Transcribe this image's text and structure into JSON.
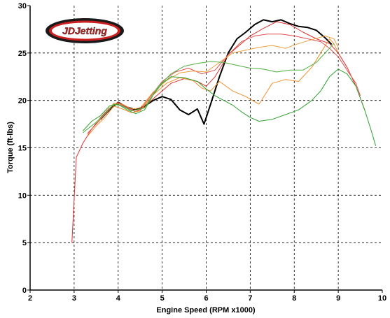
{
  "chart_data": {
    "type": "line",
    "title": "",
    "xlabel": "Engine Speed (RPM x1000)",
    "ylabel": "Torque (ft-lbs)",
    "xlim": [
      2,
      10
    ],
    "ylim": [
      0,
      30
    ],
    "x_ticks": [
      2,
      3,
      4,
      5,
      6,
      7,
      8,
      9,
      10
    ],
    "y_ticks": [
      0,
      5,
      10,
      15,
      20,
      25,
      30
    ],
    "grid": true,
    "legend": "none",
    "logo": {
      "text": "JDJetting",
      "colors": {
        "outer": "#1a1a1a",
        "ring": "#cc1f1f",
        "inner": "#ffffff",
        "text": "#cc1f1f"
      }
    },
    "series": [
      {
        "color": "#000000",
        "width": 2,
        "points": [
          [
            3.6,
            18.0
          ],
          [
            3.8,
            19.0
          ],
          [
            4.0,
            19.8
          ],
          [
            4.2,
            19.3
          ],
          [
            4.4,
            19.0
          ],
          [
            4.6,
            19.4
          ],
          [
            4.8,
            20.0
          ],
          [
            5.0,
            20.4
          ],
          [
            5.2,
            20.1
          ],
          [
            5.4,
            19.0
          ],
          [
            5.6,
            18.5
          ],
          [
            5.8,
            19.1
          ],
          [
            5.95,
            17.5
          ],
          [
            6.1,
            19.6
          ],
          [
            6.3,
            22.5
          ],
          [
            6.5,
            25.0
          ],
          [
            6.7,
            26.5
          ],
          [
            6.9,
            27.2
          ],
          [
            7.1,
            28.0
          ],
          [
            7.3,
            28.5
          ],
          [
            7.5,
            28.3
          ],
          [
            7.7,
            28.5
          ],
          [
            7.9,
            28.1
          ],
          [
            8.1,
            27.8
          ],
          [
            8.3,
            27.7
          ],
          [
            8.5,
            27.4
          ],
          [
            8.7,
            26.6
          ],
          [
            8.85,
            25.9
          ]
        ]
      },
      {
        "color": "#e03030",
        "width": 1,
        "points": [
          [
            2.95,
            5.0
          ],
          [
            3.05,
            14.0
          ],
          [
            3.2,
            15.5
          ],
          [
            3.4,
            17.0
          ],
          [
            3.6,
            18.2
          ],
          [
            3.8,
            19.2
          ],
          [
            4.0,
            19.8
          ],
          [
            4.2,
            19.2
          ],
          [
            4.4,
            18.8
          ],
          [
            4.6,
            19.3
          ],
          [
            4.8,
            20.2
          ],
          [
            5.0,
            21.0
          ],
          [
            5.2,
            21.8
          ],
          [
            5.5,
            22.3
          ],
          [
            5.8,
            22.0
          ],
          [
            6.0,
            21.5
          ],
          [
            6.2,
            22.5
          ],
          [
            6.5,
            24.8
          ],
          [
            6.8,
            26.0
          ],
          [
            7.0,
            26.8
          ],
          [
            7.3,
            27.6
          ],
          [
            7.6,
            28.3
          ],
          [
            7.9,
            28.0
          ],
          [
            8.2,
            27.2
          ],
          [
            8.5,
            26.5
          ],
          [
            8.8,
            26.0
          ],
          [
            9.0,
            25.0
          ],
          [
            9.2,
            23.5
          ],
          [
            9.4,
            21.5
          ],
          [
            9.6,
            19.0
          ]
        ]
      },
      {
        "color": "#e05050",
        "width": 1,
        "points": [
          [
            3.3,
            16.5
          ],
          [
            3.5,
            17.5
          ],
          [
            3.7,
            18.5
          ],
          [
            3.9,
            19.6
          ],
          [
            4.1,
            19.5
          ],
          [
            4.3,
            19.0
          ],
          [
            4.5,
            19.0
          ],
          [
            4.8,
            20.8
          ],
          [
            5.0,
            22.0
          ],
          [
            5.3,
            23.0
          ],
          [
            5.6,
            23.4
          ],
          [
            5.9,
            22.8
          ],
          [
            6.2,
            23.2
          ],
          [
            6.5,
            24.8
          ],
          [
            6.8,
            26.2
          ],
          [
            7.1,
            26.8
          ],
          [
            7.4,
            27.0
          ],
          [
            7.7,
            27.0
          ],
          [
            8.0,
            26.8
          ],
          [
            8.3,
            26.5
          ],
          [
            8.6,
            26.2
          ],
          [
            8.8,
            25.5
          ],
          [
            9.0,
            24.6
          ],
          [
            9.2,
            23.2
          ],
          [
            9.4,
            21.8
          ],
          [
            9.5,
            20.5
          ]
        ]
      },
      {
        "color": "#f09030",
        "width": 1,
        "points": [
          [
            3.3,
            16.2
          ],
          [
            3.5,
            17.3
          ],
          [
            3.7,
            18.2
          ],
          [
            3.9,
            19.4
          ],
          [
            4.1,
            19.1
          ],
          [
            4.3,
            18.7
          ],
          [
            4.5,
            18.9
          ],
          [
            4.8,
            20.6
          ],
          [
            5.1,
            21.8
          ],
          [
            5.4,
            22.4
          ],
          [
            5.7,
            22.1
          ],
          [
            5.9,
            21.3
          ],
          [
            6.1,
            21.0
          ],
          [
            6.3,
            22.0
          ],
          [
            6.6,
            21.0
          ],
          [
            6.9,
            20.4
          ],
          [
            7.2,
            19.6
          ],
          [
            7.5,
            21.8
          ],
          [
            7.8,
            22.2
          ],
          [
            8.1,
            22.0
          ],
          [
            8.4,
            23.5
          ],
          [
            8.6,
            25.0
          ],
          [
            8.8,
            26.5
          ],
          [
            8.9,
            26.0
          ],
          [
            9.0,
            25.0
          ]
        ]
      },
      {
        "color": "#f0a040",
        "width": 1,
        "points": [
          [
            3.5,
            17.6
          ],
          [
            3.7,
            18.6
          ],
          [
            3.9,
            19.7
          ],
          [
            4.1,
            19.6
          ],
          [
            4.3,
            19.1
          ],
          [
            4.5,
            19.2
          ],
          [
            4.8,
            20.9
          ],
          [
            5.1,
            22.1
          ],
          [
            5.4,
            22.9
          ],
          [
            5.7,
            23.1
          ],
          [
            6.0,
            23.0
          ],
          [
            6.3,
            24.0
          ],
          [
            6.6,
            25.0
          ],
          [
            6.9,
            25.3
          ],
          [
            7.2,
            25.6
          ],
          [
            7.5,
            25.8
          ],
          [
            7.8,
            25.5
          ],
          [
            8.1,
            26.0
          ],
          [
            8.4,
            26.4
          ],
          [
            8.7,
            26.8
          ],
          [
            8.9,
            26.5
          ],
          [
            9.0,
            25.6
          ]
        ]
      },
      {
        "color": "#30a030",
        "width": 1,
        "points": [
          [
            3.2,
            16.8
          ],
          [
            3.4,
            17.8
          ],
          [
            3.6,
            18.4
          ],
          [
            3.8,
            19.4
          ],
          [
            4.0,
            19.6
          ],
          [
            4.2,
            19.0
          ],
          [
            4.4,
            18.6
          ],
          [
            4.6,
            19.0
          ],
          [
            4.8,
            20.6
          ],
          [
            5.0,
            21.8
          ],
          [
            5.2,
            22.5
          ],
          [
            5.5,
            22.4
          ],
          [
            5.8,
            22.0
          ],
          [
            6.0,
            21.2
          ],
          [
            6.2,
            20.5
          ],
          [
            6.4,
            20.0
          ],
          [
            6.6,
            19.5
          ],
          [
            6.8,
            18.8
          ],
          [
            7.0,
            18.2
          ],
          [
            7.2,
            17.8
          ],
          [
            7.5,
            18.0
          ],
          [
            7.8,
            18.5
          ],
          [
            8.1,
            19.0
          ],
          [
            8.4,
            20.0
          ],
          [
            8.6,
            21.0
          ],
          [
            8.8,
            22.5
          ],
          [
            9.0,
            23.3
          ],
          [
            9.2,
            22.8
          ],
          [
            9.4,
            21.5
          ],
          [
            9.6,
            19.0
          ],
          [
            9.75,
            16.8
          ],
          [
            9.85,
            15.2
          ]
        ]
      },
      {
        "color": "#50b040",
        "width": 1,
        "points": [
          [
            3.2,
            16.6
          ],
          [
            3.5,
            17.7
          ],
          [
            3.7,
            18.6
          ],
          [
            3.9,
            19.6
          ],
          [
            4.1,
            19.4
          ],
          [
            4.3,
            18.9
          ],
          [
            4.6,
            19.2
          ],
          [
            4.9,
            21.4
          ],
          [
            5.2,
            22.8
          ],
          [
            5.5,
            23.6
          ],
          [
            5.8,
            23.9
          ],
          [
            6.1,
            24.1
          ],
          [
            6.4,
            24.0
          ],
          [
            6.7,
            23.7
          ],
          [
            7.0,
            23.4
          ],
          [
            7.3,
            23.3
          ],
          [
            7.6,
            23.0
          ],
          [
            7.9,
            23.2
          ],
          [
            8.2,
            23.2
          ],
          [
            8.5,
            24.0
          ],
          [
            8.7,
            25.0
          ],
          [
            8.9,
            26.0
          ]
        ]
      }
    ]
  }
}
